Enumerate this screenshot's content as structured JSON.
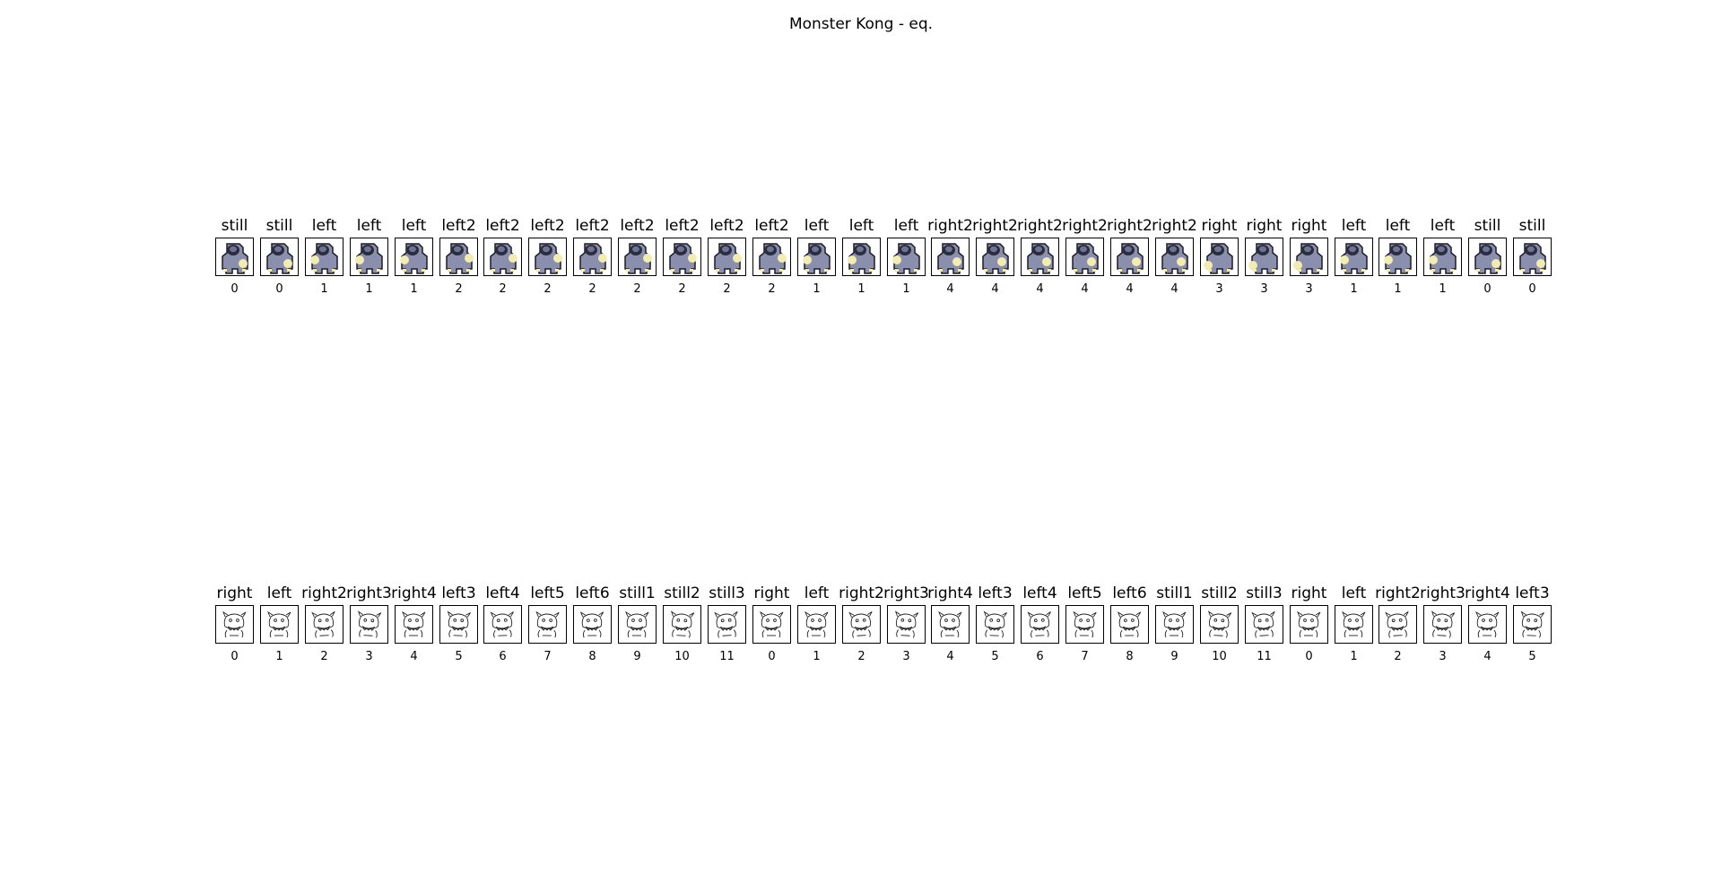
{
  "figure": {
    "title": "Monster Kong - eq."
  },
  "rows": [
    {
      "name": "rendered-frames",
      "style": "color",
      "colors": {
        "body": "#8a8fad",
        "dark": "#2b2d3f",
        "highlight": "#f3ecb0",
        "outline": "#1c1c28"
      },
      "labels": [
        "still",
        "still",
        "left",
        "left",
        "left",
        "left2",
        "left2",
        "left2",
        "left2",
        "left2",
        "left2",
        "left2",
        "left2",
        "left",
        "left",
        "left",
        "right2",
        "right2",
        "right2",
        "right2",
        "right2",
        "right2",
        "right",
        "right",
        "right",
        "left",
        "left",
        "left",
        "still",
        "still"
      ],
      "indices": [
        "0",
        "0",
        "1",
        "1",
        "1",
        "2",
        "2",
        "2",
        "2",
        "2",
        "2",
        "2",
        "2",
        "1",
        "1",
        "1",
        "4",
        "4",
        "4",
        "4",
        "4",
        "4",
        "3",
        "3",
        "3",
        "1",
        "1",
        "1",
        "0",
        "0"
      ],
      "icon": "monster-sprite-icon"
    },
    {
      "name": "sprite-frames",
      "style": "line",
      "colors": {
        "stroke": "#222222"
      },
      "labels": [
        "right",
        "left",
        "right2",
        "right3",
        "right4",
        "left3",
        "left4",
        "left5",
        "left6",
        "still1",
        "still2",
        "still3",
        "right",
        "left",
        "right2",
        "right3",
        "right4",
        "left3",
        "left4",
        "left5",
        "left6",
        "still1",
        "still2",
        "still3",
        "right",
        "left",
        "right2",
        "right3",
        "right4",
        "left3"
      ],
      "indices": [
        "0",
        "1",
        "2",
        "3",
        "4",
        "5",
        "6",
        "7",
        "8",
        "9",
        "10",
        "11",
        "0",
        "1",
        "2",
        "3",
        "4",
        "5",
        "6",
        "7",
        "8",
        "9",
        "10",
        "11",
        "0",
        "1",
        "2",
        "3",
        "4",
        "5"
      ],
      "icon": "monster-outline-icon"
    }
  ]
}
